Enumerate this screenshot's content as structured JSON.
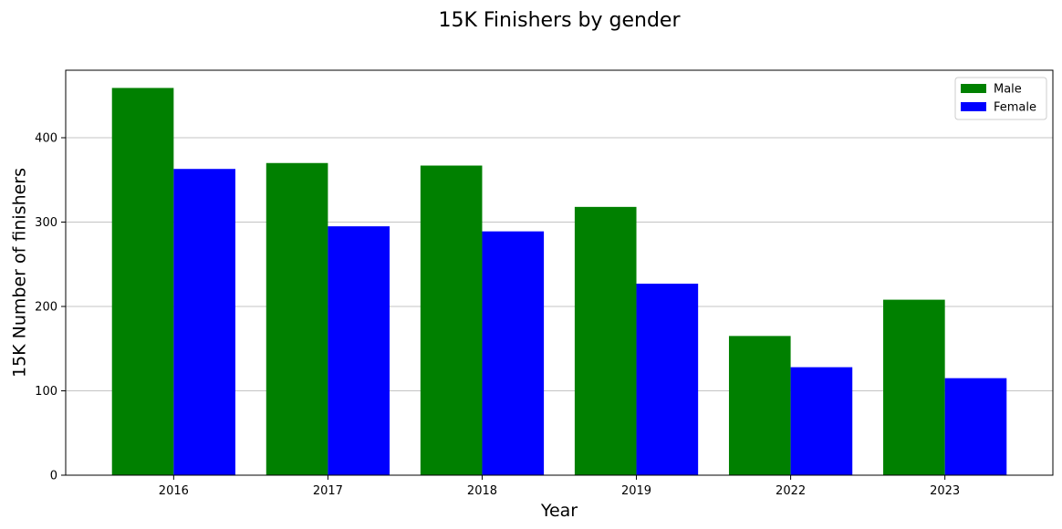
{
  "chart_data": {
    "type": "bar",
    "title": "15K Finishers by gender",
    "xlabel": "Year",
    "ylabel": "15K Number of finishers",
    "categories": [
      "2016",
      "2017",
      "2018",
      "2019",
      "2022",
      "2023"
    ],
    "series": [
      {
        "name": "Male",
        "color": "#008000",
        "values": [
          459,
          370,
          367,
          318,
          165,
          208
        ]
      },
      {
        "name": "Female",
        "color": "#0000ff",
        "values": [
          363,
          295,
          289,
          227,
          128,
          115
        ]
      }
    ],
    "ylim": [
      0,
      480
    ],
    "yticks": [
      0,
      100,
      200,
      300,
      400
    ],
    "grid": "y",
    "legend_position": "top-right"
  }
}
